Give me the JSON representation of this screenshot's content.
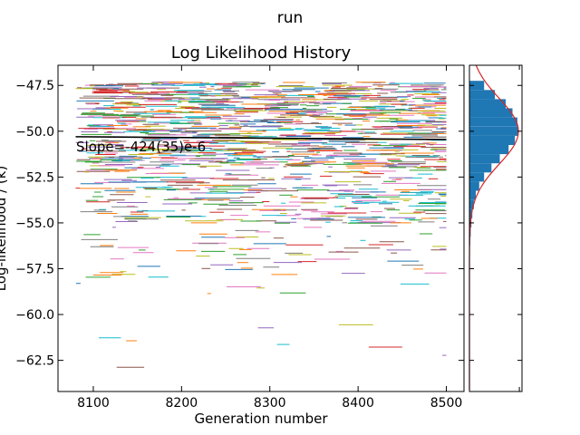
{
  "suptitle": "run",
  "chart_data": [
    {
      "type": "line",
      "title": "Log Likelihood History",
      "xlabel": "Generation number",
      "ylabel": "Log-likelihood / (k)",
      "xlim": [
        8060,
        8520
      ],
      "ylim": [
        -64.2,
        -46.4
      ],
      "xticks": [
        8100,
        8200,
        8300,
        8400,
        8500
      ],
      "yticks": [
        -47.5,
        -50.0,
        -52.5,
        -55.0,
        -57.5,
        -60.0,
        -62.5
      ],
      "xtick_labels": [
        "8100",
        "8200",
        "8300",
        "8400",
        "8500"
      ],
      "ytick_labels": [
        "−47.5",
        "−50.0",
        "−52.5",
        "−55.0",
        "−57.5",
        "−60.0",
        "−62.5"
      ],
      "annotation": "Slope=-424(35)e-6",
      "trend_line": {
        "x": [
          8080,
          8500
        ],
        "y": [
          -50.3,
          -50.45
        ]
      },
      "generation_range": [
        8080,
        8500
      ],
      "chain_likelihood_bands": [
        {
          "y_from": -47.3,
          "y_to": -52.0,
          "density": "dense"
        },
        {
          "y_from": -52.0,
          "y_to": -55.0,
          "density": "medium"
        },
        {
          "y_from": -55.0,
          "y_to": -58.0,
          "density": "sparse"
        },
        {
          "y_from": -58.0,
          "y_to": -63.5,
          "density": "rare"
        }
      ],
      "grid": false,
      "tick_direction": "in"
    },
    {
      "type": "histogram",
      "orientation": "horizontal",
      "ylim": [
        -64.2,
        -46.4
      ],
      "bins": [
        {
          "y": -47.5,
          "count": 0.3
        },
        {
          "y": -48.0,
          "count": 0.52
        },
        {
          "y": -48.5,
          "count": 0.74
        },
        {
          "y": -49.0,
          "count": 0.88
        },
        {
          "y": -49.5,
          "count": 0.98
        },
        {
          "y": -50.0,
          "count": 1.0
        },
        {
          "y": -50.5,
          "count": 0.93
        },
        {
          "y": -51.0,
          "count": 0.8
        },
        {
          "y": -51.5,
          "count": 0.62
        },
        {
          "y": -52.0,
          "count": 0.45
        },
        {
          "y": -52.5,
          "count": 0.3
        },
        {
          "y": -53.0,
          "count": 0.2
        },
        {
          "y": -53.5,
          "count": 0.13
        },
        {
          "y": -54.0,
          "count": 0.09
        },
        {
          "y": -54.5,
          "count": 0.06
        },
        {
          "y": -55.0,
          "count": 0.04
        },
        {
          "y": -55.5,
          "count": 0.025
        },
        {
          "y": -56.0,
          "count": 0.015
        }
      ],
      "fit_curve": {
        "type": "gaussian",
        "mean": -50.0,
        "sigma": 1.8
      },
      "bar_color": "#1f77b4",
      "curve_color": "#d62728"
    }
  ],
  "colors": {
    "series": [
      "#1f77b4",
      "#ff7f0e",
      "#2ca02c",
      "#d62728",
      "#9467bd",
      "#8c564b",
      "#e377c2",
      "#7f7f7f",
      "#bcbd22",
      "#17becf"
    ],
    "trend": "#000000"
  }
}
